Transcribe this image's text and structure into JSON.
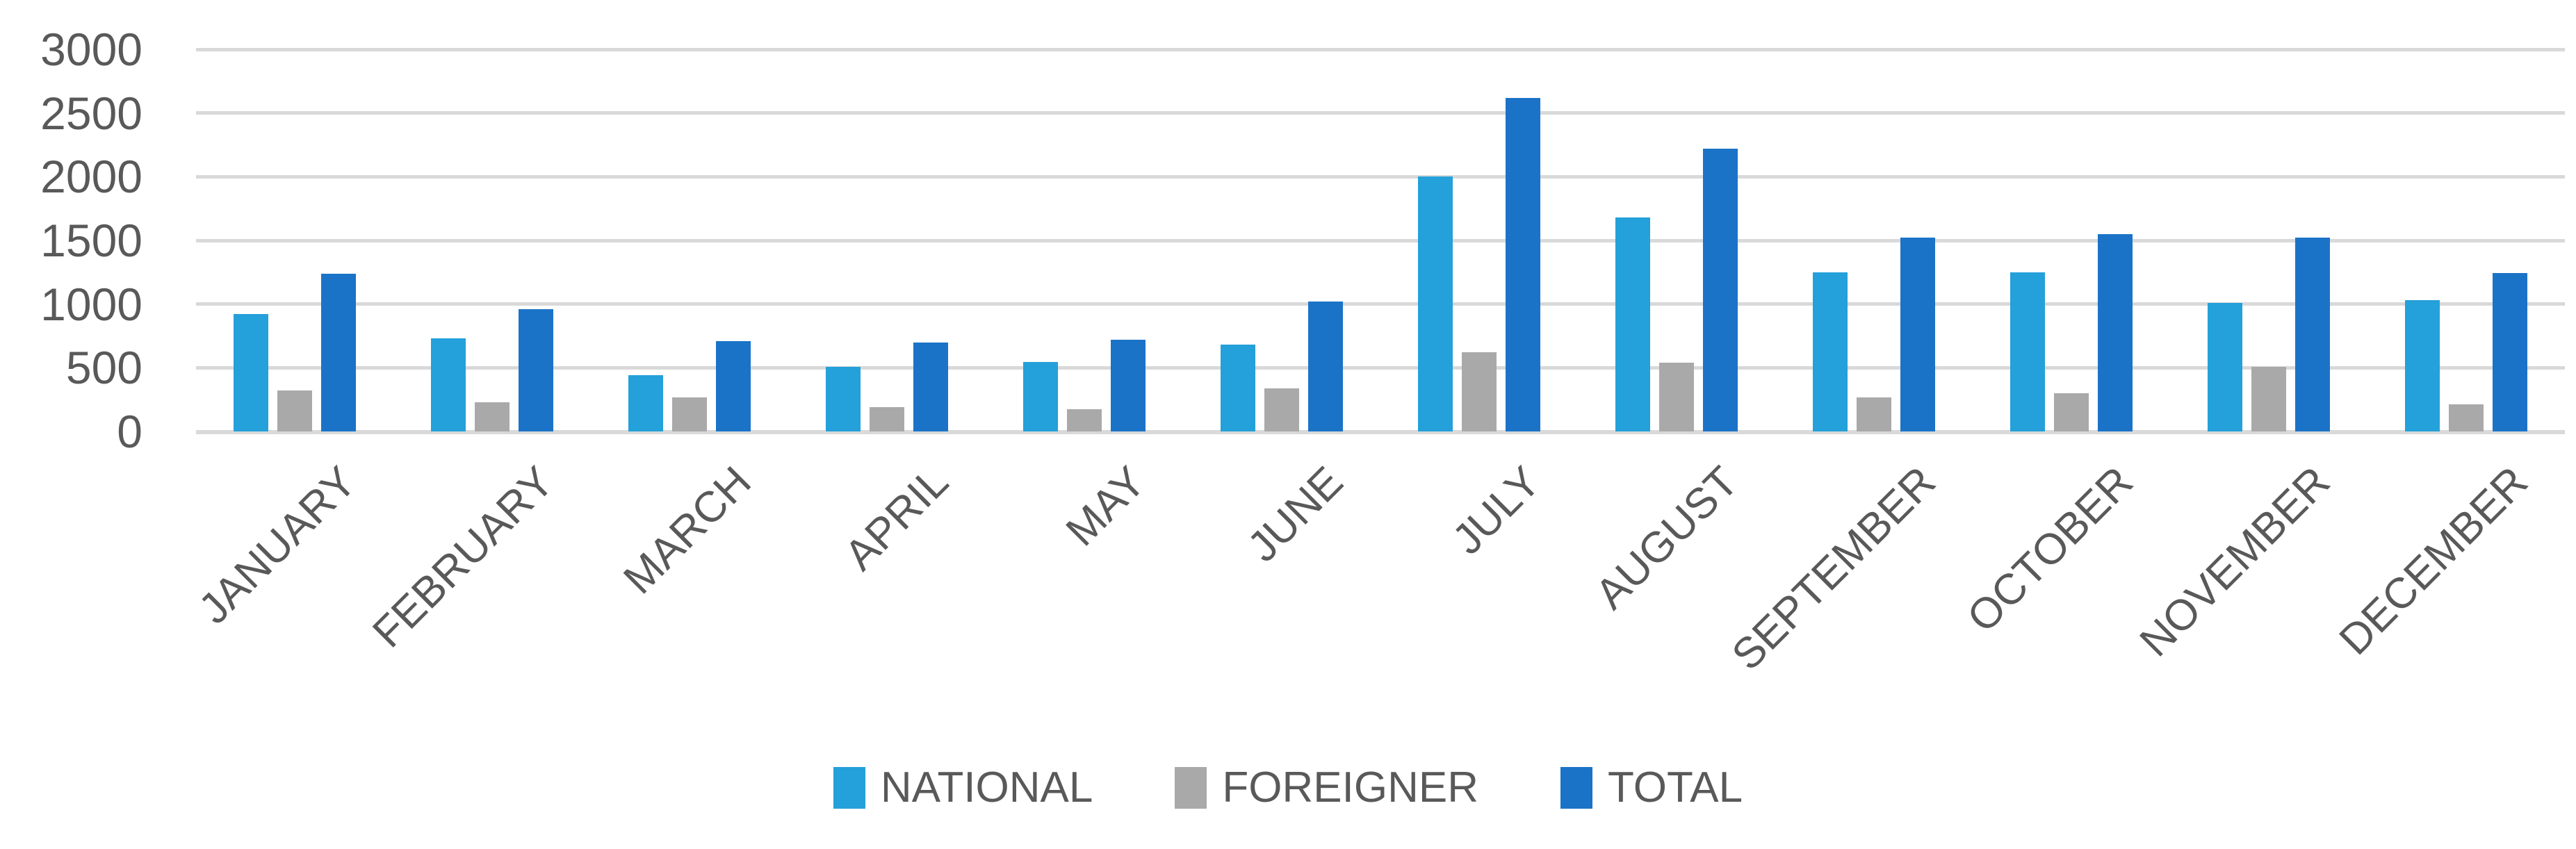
{
  "chart_data": {
    "type": "bar",
    "title": "",
    "categories": [
      "JANUARY",
      "FEBRUARY",
      "MARCH",
      "APRIL",
      "MAY",
      "JUNE",
      "JULY",
      "AUGUST",
      "SEPTEMBER",
      "OCTOBER",
      "NOVEMBER",
      "DECEMBER"
    ],
    "series": [
      {
        "name": "NATIONAL",
        "color": "#24A0DA",
        "values": [
          920,
          730,
          440,
          510,
          545,
          680,
          2000,
          1680,
          1250,
          1250,
          1010,
          1030
        ]
      },
      {
        "name": "FOREIGNER",
        "color": "#A9A9A9",
        "values": [
          320,
          230,
          270,
          190,
          175,
          340,
          620,
          540,
          270,
          300,
          510,
          215
        ]
      },
      {
        "name": "TOTAL",
        "color": "#1B73C7",
        "values": [
          1240,
          960,
          710,
          700,
          720,
          1020,
          2620,
          2220,
          1520,
          1550,
          1520,
          1245
        ]
      }
    ],
    "ylim": [
      0,
      3000
    ],
    "yticks": [
      0,
      500,
      1000,
      1500,
      2000,
      2500,
      3000
    ],
    "grid": "horizontal",
    "gridline_color": "#D9D9D9",
    "text_color": "#595959",
    "background_color": "#FFFFFF",
    "legend_position": "bottom",
    "x_label_rotation_deg": 45
  }
}
